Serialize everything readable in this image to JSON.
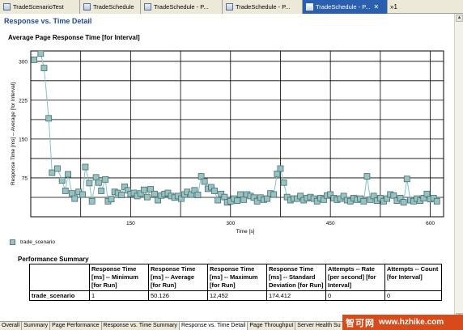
{
  "editor_tabs": [
    {
      "label": "TradeScenarioTest",
      "active": false,
      "width": 99
    },
    {
      "label": "TradeSchedule",
      "active": false,
      "width": 75
    },
    {
      "label": "TradeSchedule - P...",
      "active": false,
      "width": 101
    },
    {
      "label": "TradeSchedule - P...",
      "active": false,
      "width": 99
    },
    {
      "label": "TradeSchedule - P...",
      "active": true,
      "width": 105
    }
  ],
  "overflow_label": "»1",
  "section_title": "Response vs. Time Detail",
  "colors": {
    "accent": "#244a9a",
    "marker_fill": "#96c4c4",
    "marker_stroke": "#4a6a6a",
    "line": "#84c4c4"
  },
  "chart_data": {
    "type": "line",
    "title": "Average Page Response Time [for Interval]",
    "xlabel": "Time [s]",
    "ylabel": "Response Time [ms] -- Average [for Interval]",
    "xlim": [
      0,
      620
    ],
    "ylim": [
      0,
      320
    ],
    "x_ticks": [
      150,
      300,
      450,
      600
    ],
    "y_ticks": [
      75,
      150,
      225,
      300
    ],
    "grid": true,
    "legend_position": "bottom-left",
    "series": [
      {
        "name": "trade_scenario",
        "points": [
          [
            5,
            303
          ],
          [
            15,
            315
          ],
          [
            20,
            287
          ],
          [
            27,
            190
          ],
          [
            32,
            85
          ],
          [
            40,
            93
          ],
          [
            47,
            70
          ],
          [
            52,
            50
          ],
          [
            56,
            82
          ],
          [
            62,
            45
          ],
          [
            66,
            35
          ],
          [
            72,
            48
          ],
          [
            78,
            43
          ],
          [
            82,
            96
          ],
          [
            88,
            65
          ],
          [
            92,
            30
          ],
          [
            98,
            76
          ],
          [
            102,
            66
          ],
          [
            106,
            50
          ],
          [
            112,
            72
          ],
          [
            116,
            30
          ],
          [
            121,
            34
          ],
          [
            126,
            48
          ],
          [
            131,
            46
          ],
          [
            136,
            42
          ],
          [
            141,
            58
          ],
          [
            146,
            51
          ],
          [
            150,
            44
          ],
          [
            155,
            46
          ],
          [
            160,
            40
          ],
          [
            165,
            45
          ],
          [
            170,
            52
          ],
          [
            175,
            38
          ],
          [
            180,
            53
          ],
          [
            186,
            44
          ],
          [
            191,
            32
          ],
          [
            196,
            41
          ],
          [
            201,
            44
          ],
          [
            206,
            46
          ],
          [
            211,
            40
          ],
          [
            216,
            37
          ],
          [
            221,
            40
          ],
          [
            226,
            35
          ],
          [
            231,
            43
          ],
          [
            235,
            48
          ],
          [
            241,
            43
          ],
          [
            246,
            51
          ],
          [
            251,
            42
          ],
          [
            256,
            78
          ],
          [
            261,
            68
          ],
          [
            266,
            54
          ],
          [
            271,
            57
          ],
          [
            276,
            50
          ],
          [
            281,
            32
          ],
          [
            286,
            44
          ],
          [
            291,
            38
          ],
          [
            295,
            28
          ],
          [
            300,
            30
          ],
          [
            305,
            35
          ],
          [
            310,
            31
          ],
          [
            315,
            43
          ],
          [
            320,
            33
          ],
          [
            325,
            43
          ],
          [
            330,
            40
          ],
          [
            335,
            37
          ],
          [
            340,
            30
          ],
          [
            345,
            37
          ],
          [
            350,
            33
          ],
          [
            355,
            35
          ],
          [
            360,
            45
          ],
          [
            365,
            43
          ],
          [
            370,
            83
          ],
          [
            375,
            93
          ],
          [
            380,
            66
          ],
          [
            385,
            38
          ],
          [
            390,
            32
          ],
          [
            395,
            35
          ],
          [
            400,
            35
          ],
          [
            405,
            40
          ],
          [
            410,
            32
          ],
          [
            415,
            36
          ],
          [
            420,
            38
          ],
          [
            425,
            35
          ],
          [
            430,
            30
          ],
          [
            435,
            36
          ],
          [
            440,
            33
          ],
          [
            445,
            41
          ],
          [
            450,
            43
          ],
          [
            455,
            36
          ],
          [
            460,
            33
          ],
          [
            465,
            35
          ],
          [
            470,
            40
          ],
          [
            475,
            32
          ],
          [
            480,
            30
          ],
          [
            485,
            36
          ],
          [
            490,
            33
          ],
          [
            495,
            35
          ],
          [
            500,
            30
          ],
          [
            505,
            78
          ],
          [
            510,
            33
          ],
          [
            515,
            40
          ],
          [
            520,
            31
          ],
          [
            525,
            36
          ],
          [
            530,
            30
          ],
          [
            535,
            35
          ],
          [
            540,
            43
          ],
          [
            545,
            41
          ],
          [
            550,
            31
          ],
          [
            555,
            36
          ],
          [
            560,
            28
          ],
          [
            565,
            73
          ],
          [
            570,
            32
          ],
          [
            575,
            30
          ],
          [
            580,
            35
          ],
          [
            585,
            31
          ],
          [
            590,
            36
          ],
          [
            595,
            44
          ],
          [
            600,
            34
          ],
          [
            605,
            36
          ],
          [
            610,
            30
          ]
        ]
      }
    ]
  },
  "legend_label": "trade_scenario",
  "summary": {
    "title": "Performance Summary",
    "headers": [
      "",
      "Response Time [ms] -- Minimum [for Run]",
      "Response Time [ms] -- Average [for Run]",
      "Response Time [ms] -- Maximum [for Run]",
      "Response Time [ms] -- Standard Deviation [for Run]",
      "Attempts -- Rate [per second] [for Interval]",
      "Attempts -- Count [for Interval]"
    ],
    "rows": [
      [
        "trade_scenario",
        "1",
        "50.126",
        "12,452",
        "174.412",
        "0",
        "0"
      ]
    ]
  },
  "bottom_tabs": [
    {
      "label": "Overall",
      "active": false
    },
    {
      "label": "Summary",
      "active": false
    },
    {
      "label": "Page Performance",
      "active": false
    },
    {
      "label": "Response vs. Time Summary",
      "active": false
    },
    {
      "label": "Response vs. Time Detail",
      "active": true
    },
    {
      "label": "Page Throughput",
      "active": false
    },
    {
      "label": "Server Health Su",
      "active": false
    }
  ],
  "watermark": {
    "cn": "智可网",
    "url": "www.hzhike.com"
  }
}
